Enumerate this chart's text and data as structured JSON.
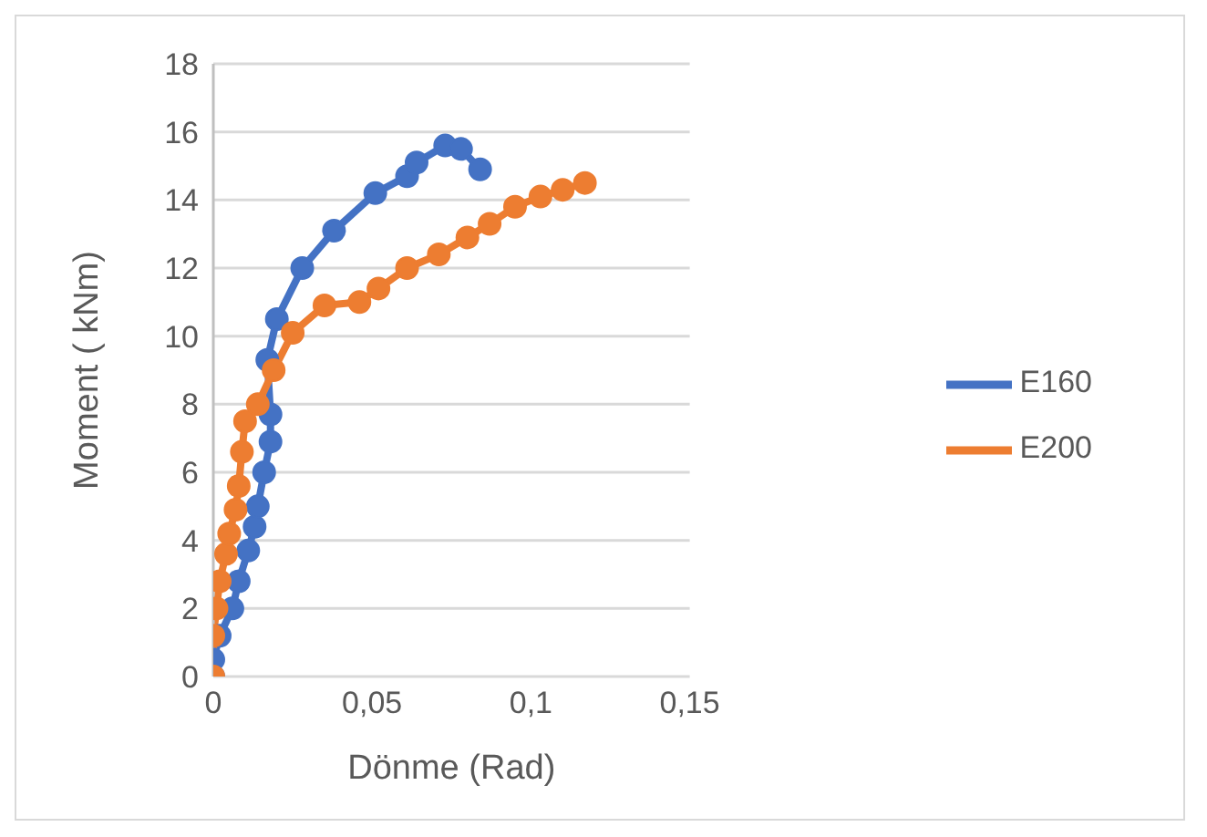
{
  "chart_data": {
    "type": "line",
    "xlabel": "Dönme (Rad)",
    "ylabel": "Moment ( kNm)",
    "xlim": [
      0,
      0.15
    ],
    "xticks": [
      0,
      {
        "value": 0.05,
        "label": "0,05"
      },
      {
        "value": 0.1,
        "label": "0,1"
      },
      {
        "value": 0.15,
        "label": "0,15"
      }
    ],
    "ylim": [
      0,
      18
    ],
    "yticks": [
      0,
      2,
      4,
      6,
      8,
      10,
      12,
      14,
      16,
      18
    ],
    "grid": "y",
    "legend": "right",
    "marker": "circle",
    "line_style": "solid",
    "series": [
      {
        "name": "E160",
        "color": "#4472c4",
        "x": [
          0,
          0,
          0.002,
          0.006,
          0.008,
          0.011,
          0.013,
          0.014,
          0.016,
          0.018,
          0.018,
          0.017,
          0.02,
          0.028,
          0.038,
          0.051,
          0.061,
          0.064,
          0.073,
          0.078,
          0.084
        ],
        "values": [
          0,
          0.5,
          1.2,
          2,
          2.8,
          3.7,
          4.4,
          5,
          6,
          6.9,
          7.7,
          9.3,
          10.5,
          12,
          13.1,
          14.2,
          14.7,
          15.1,
          15.6,
          15.5,
          14.9
        ]
      },
      {
        "name": "E200",
        "color": "#ed7d31",
        "x": [
          0,
          0,
          0.001,
          0.002,
          0.004,
          0.005,
          0.007,
          0.008,
          0.009,
          0.01,
          0.014,
          0.019,
          0.025,
          0.035,
          0.046,
          0.052,
          0.061,
          0.071,
          0.08,
          0.087,
          0.095,
          0.103,
          0.11,
          0.117
        ],
        "values": [
          0,
          1.2,
          2,
          2.8,
          3.6,
          4.2,
          4.9,
          5.6,
          6.6,
          7.5,
          8,
          9,
          10.1,
          10.9,
          11,
          11.4,
          12,
          12.4,
          12.9,
          13.3,
          13.8,
          14.1,
          14.3,
          14.5
        ]
      }
    ]
  }
}
